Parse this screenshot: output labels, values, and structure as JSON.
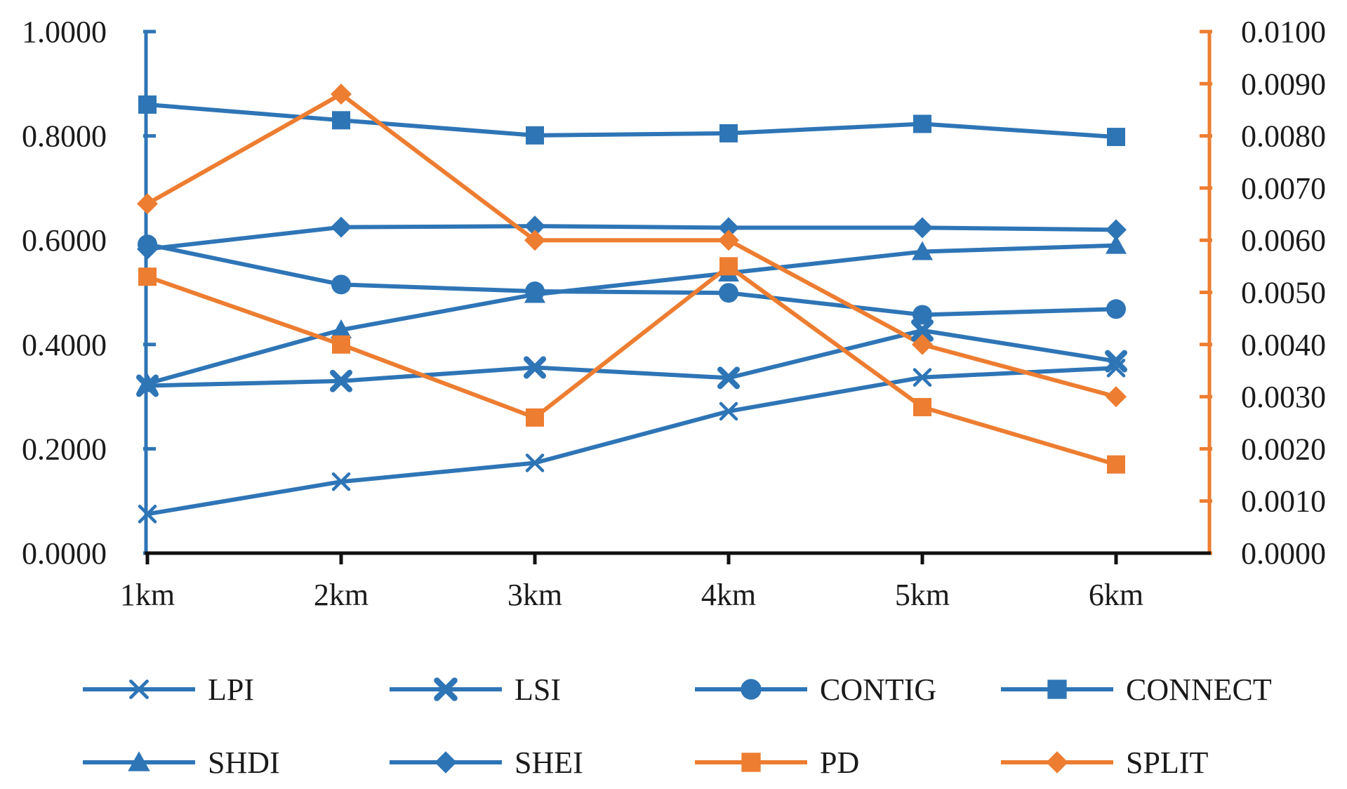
{
  "chart_data": {
    "type": "line",
    "categories": [
      "1km",
      "2km",
      "3km",
      "4km",
      "5km",
      "6km"
    ],
    "left_axis": {
      "ylim": [
        0,
        1
      ],
      "ticks": [
        0,
        0.2,
        0.4,
        0.6,
        0.8,
        1.0
      ],
      "tick_labels": [
        "0.0000",
        "0.2000",
        "0.4000",
        "0.6000",
        "0.8000",
        "1.0000"
      ],
      "color": "#2e75b6"
    },
    "right_axis": {
      "ylim": [
        0,
        0.01
      ],
      "ticks": [
        0,
        0.001,
        0.002,
        0.003,
        0.004,
        0.005,
        0.006,
        0.007,
        0.008,
        0.009,
        0.01
      ],
      "tick_labels": [
        "0.0000",
        "0.0010",
        "0.0020",
        "0.0030",
        "0.0040",
        "0.0050",
        "0.0060",
        "0.0070",
        "0.0080",
        "0.0090",
        "0.0100"
      ],
      "color": "#ed7d31"
    },
    "series": [
      {
        "name": "LPI",
        "axis": "left",
        "marker": "x",
        "color": "#2e75b6",
        "values": [
          0.075,
          0.137,
          0.173,
          0.272,
          0.337,
          0.355
        ]
      },
      {
        "name": "LSI",
        "axis": "left",
        "marker": "bigx",
        "color": "#2e75b6",
        "values": [
          0.321,
          0.33,
          0.356,
          0.336,
          0.427,
          0.368
        ]
      },
      {
        "name": "CONTIG",
        "axis": "left",
        "marker": "circle",
        "color": "#2e75b6",
        "values": [
          0.592,
          0.515,
          0.502,
          0.499,
          0.457,
          0.468
        ]
      },
      {
        "name": "CONNECT",
        "axis": "left",
        "marker": "square",
        "color": "#2e75b6",
        "values": [
          0.86,
          0.83,
          0.801,
          0.805,
          0.823,
          0.798
        ]
      },
      {
        "name": "SHDI",
        "axis": "left",
        "marker": "triangle",
        "color": "#2e75b6",
        "values": [
          0.325,
          0.428,
          0.496,
          0.537,
          0.578,
          0.59
        ]
      },
      {
        "name": "SHEI",
        "axis": "left",
        "marker": "diamond",
        "color": "#2e75b6",
        "values": [
          0.583,
          0.625,
          0.627,
          0.624,
          0.624,
          0.62
        ]
      },
      {
        "name": "PD",
        "axis": "right",
        "marker": "square",
        "color": "#ed7d31",
        "values": [
          0.0053,
          0.004,
          0.0026,
          0.0055,
          0.0028,
          0.0017
        ]
      },
      {
        "name": "SPLIT",
        "axis": "right",
        "marker": "diamond",
        "color": "#ed7d31",
        "values": [
          0.0067,
          0.0088,
          0.006,
          0.006,
          0.004,
          0.003
        ]
      }
    ],
    "legend": {
      "placement": "bottom",
      "columns": 4
    },
    "title": "",
    "xlabel": "",
    "ylabel": ""
  }
}
